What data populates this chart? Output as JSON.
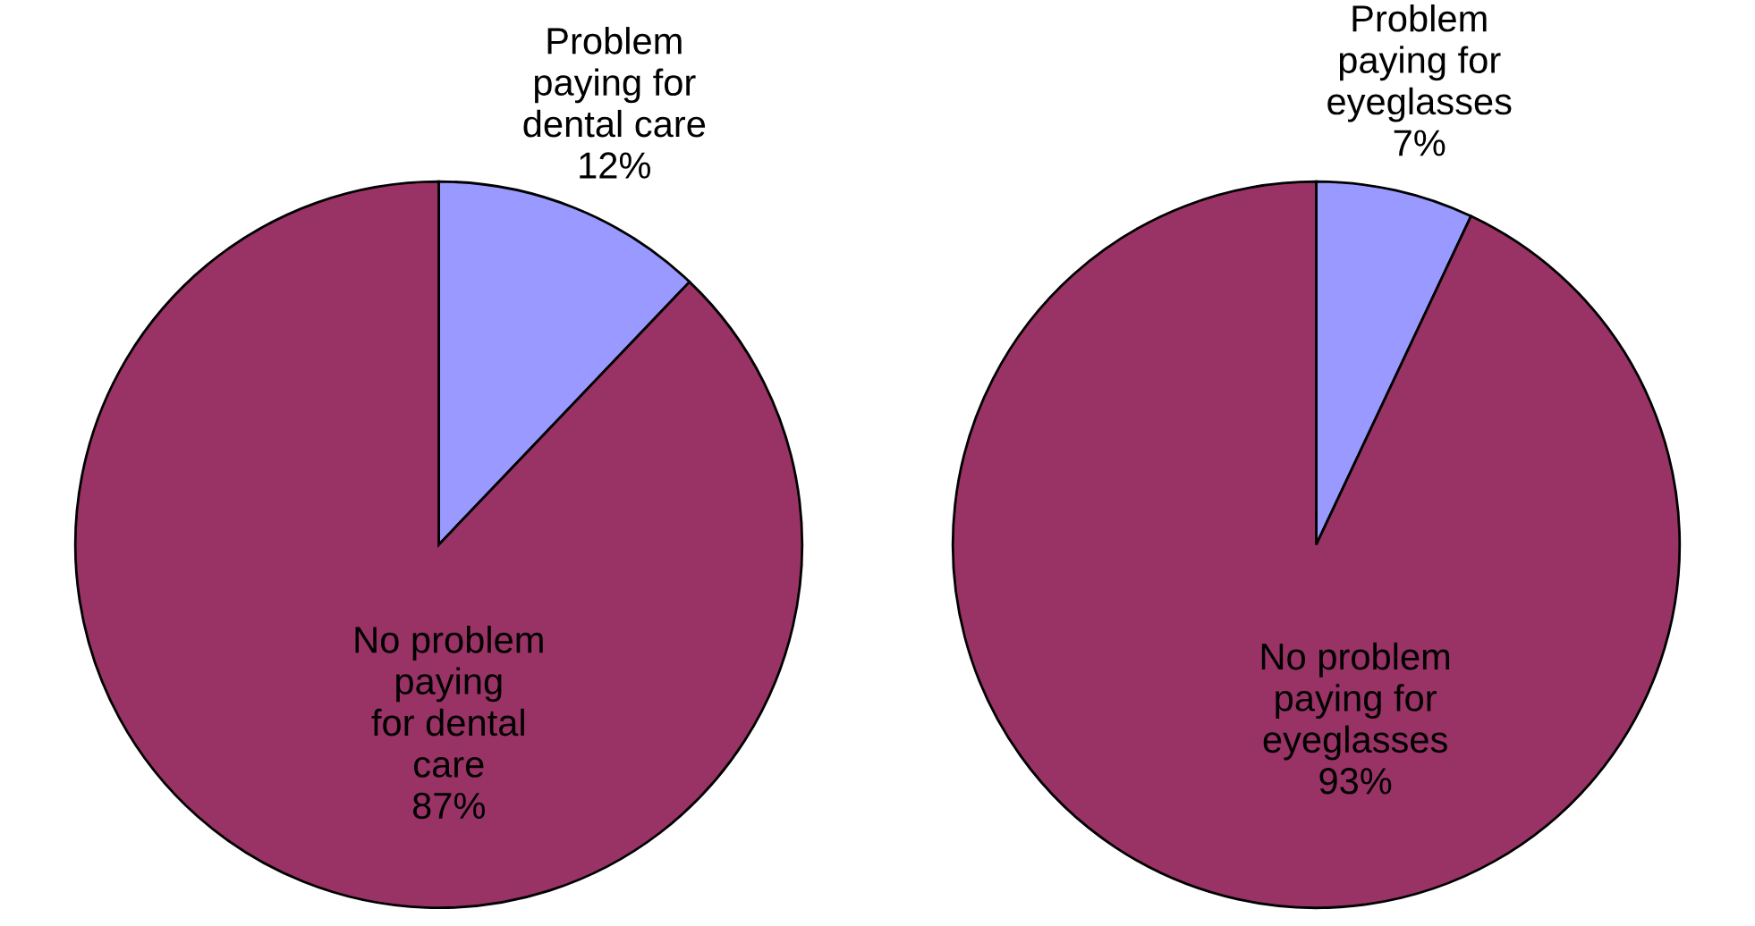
{
  "chart_data": [
    {
      "type": "pie",
      "categories": [
        "Problem\npaying for\ndental care",
        "No problem\npaying\nfor dental\ncare"
      ],
      "values": [
        12,
        87
      ],
      "value_labels": [
        "12%",
        "87%"
      ],
      "colors": [
        "#9999ff",
        "#993366"
      ]
    },
    {
      "type": "pie",
      "categories": [
        "Problem\npaying for\neyeglasses",
        "No problem\npaying for\neyeglasses"
      ],
      "values": [
        7,
        93
      ],
      "value_labels": [
        "7%",
        "93%"
      ],
      "colors": [
        "#9999ff",
        "#993366"
      ]
    }
  ]
}
